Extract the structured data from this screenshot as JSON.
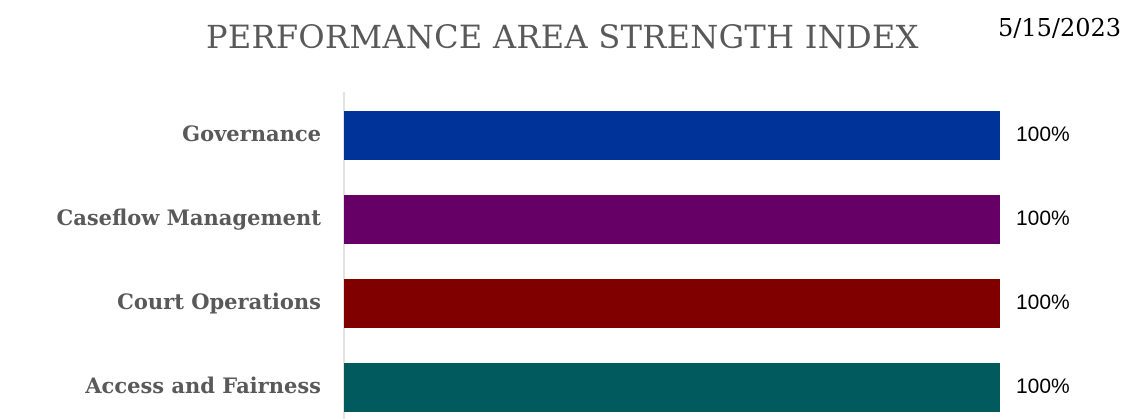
{
  "chart_data": {
    "type": "bar",
    "orientation": "horizontal",
    "title": "PERFORMANCE AREA STRENGTH INDEX",
    "date": "5/15/2023",
    "categories": [
      "Governance",
      "Caseflow Management",
      "Court Operations",
      "Access and Fairness"
    ],
    "values": [
      100,
      100,
      100,
      100
    ],
    "value_labels": [
      "100%",
      "100%",
      "100%",
      "100%"
    ],
    "xlim": [
      0,
      100
    ],
    "colors": [
      "#003399",
      "#660066",
      "#800000",
      "#005A5E"
    ],
    "grid": false,
    "legend": "none"
  }
}
